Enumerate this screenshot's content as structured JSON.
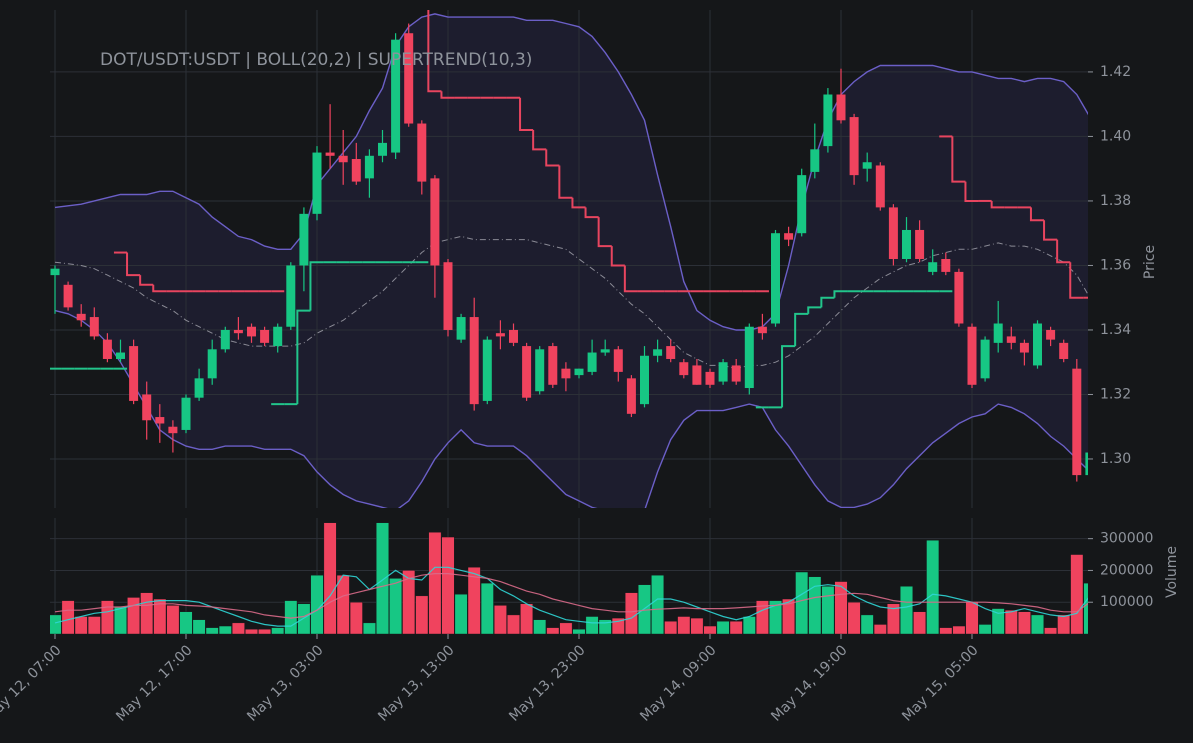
{
  "chart_data": [
    {
      "type": "candlestick",
      "title": "DOT/USDT:USDT | BOLL(20,2) | SUPERTREND(10,3)",
      "ylabel": "Price",
      "up_color": "#17c784",
      "down_color": "#f0435e",
      "open": [
        1.357,
        1.354,
        1.345,
        1.344,
        1.337,
        1.331,
        1.335,
        1.32,
        1.313,
        1.31,
        1.309,
        1.319,
        1.325,
        1.334,
        1.34,
        1.341,
        1.34,
        1.335,
        1.341,
        1.36,
        1.376,
        1.395,
        1.394,
        1.393,
        1.387,
        1.394,
        1.395,
        1.432,
        1.404,
        1.387,
        1.361,
        1.337,
        1.344,
        1.318,
        1.339,
        1.34,
        1.335,
        1.321,
        1.335,
        1.328,
        1.326,
        1.327,
        1.333,
        1.334,
        1.325,
        1.317,
        1.332,
        1.335,
        1.33,
        1.329,
        1.327,
        1.324,
        1.329,
        1.322,
        1.341,
        1.342,
        1.37,
        1.37,
        1.389,
        1.397,
        1.413,
        1.406,
        1.39,
        1.391,
        1.378,
        1.362,
        1.371,
        1.358,
        1.362,
        1.358,
        1.341,
        1.325,
        1.336,
        1.338,
        1.336,
        1.329,
        1.34,
        1.336,
        1.328,
        1.295
      ],
      "high": [
        1.36,
        1.355,
        1.348,
        1.347,
        1.339,
        1.337,
        1.337,
        1.324,
        1.317,
        1.312,
        1.32,
        1.328,
        1.337,
        1.341,
        1.344,
        1.342,
        1.341,
        1.342,
        1.361,
        1.378,
        1.397,
        1.41,
        1.402,
        1.398,
        1.396,
        1.402,
        1.432,
        1.435,
        1.405,
        1.388,
        1.362,
        1.345,
        1.35,
        1.338,
        1.343,
        1.342,
        1.336,
        1.335,
        1.336,
        1.33,
        1.328,
        1.337,
        1.337,
        1.335,
        1.326,
        1.335,
        1.337,
        1.337,
        1.331,
        1.331,
        1.328,
        1.331,
        1.331,
        1.342,
        1.345,
        1.371,
        1.372,
        1.39,
        1.404,
        1.415,
        1.421,
        1.407,
        1.395,
        1.392,
        1.379,
        1.375,
        1.374,
        1.365,
        1.364,
        1.359,
        1.342,
        1.338,
        1.349,
        1.341,
        1.337,
        1.343,
        1.341,
        1.337,
        1.331,
        1.31
      ],
      "low": [
        1.345,
        1.346,
        1.341,
        1.337,
        1.33,
        1.33,
        1.317,
        1.306,
        1.305,
        1.302,
        1.308,
        1.318,
        1.323,
        1.333,
        1.337,
        1.336,
        1.335,
        1.333,
        1.34,
        1.352,
        1.374,
        1.39,
        1.385,
        1.385,
        1.381,
        1.392,
        1.393,
        1.403,
        1.382,
        1.35,
        1.338,
        1.336,
        1.315,
        1.317,
        1.334,
        1.335,
        1.318,
        1.32,
        1.322,
        1.321,
        1.325,
        1.326,
        1.332,
        1.324,
        1.313,
        1.316,
        1.33,
        1.33,
        1.325,
        1.323,
        1.322,
        1.323,
        1.323,
        1.32,
        1.337,
        1.341,
        1.366,
        1.369,
        1.387,
        1.395,
        1.404,
        1.385,
        1.386,
        1.377,
        1.36,
        1.361,
        1.361,
        1.357,
        1.357,
        1.341,
        1.322,
        1.324,
        1.333,
        1.334,
        1.329,
        1.328,
        1.335,
        1.33,
        1.293,
        1.288
      ],
      "close": [
        1.359,
        1.347,
        1.343,
        1.338,
        1.331,
        1.333,
        1.318,
        1.312,
        1.311,
        1.308,
        1.319,
        1.325,
        1.334,
        1.34,
        1.339,
        1.338,
        1.336,
        1.341,
        1.36,
        1.376,
        1.395,
        1.394,
        1.392,
        1.386,
        1.394,
        1.398,
        1.43,
        1.404,
        1.386,
        1.36,
        1.34,
        1.344,
        1.317,
        1.337,
        1.338,
        1.336,
        1.319,
        1.334,
        1.323,
        1.325,
        1.328,
        1.333,
        1.334,
        1.327,
        1.314,
        1.332,
        1.334,
        1.331,
        1.326,
        1.323,
        1.323,
        1.33,
        1.324,
        1.341,
        1.339,
        1.37,
        1.368,
        1.388,
        1.396,
        1.413,
        1.405,
        1.388,
        1.392,
        1.378,
        1.362,
        1.371,
        1.362,
        1.361,
        1.358,
        1.342,
        1.323,
        1.337,
        1.342,
        1.336,
        1.333,
        1.342,
        1.337,
        1.331,
        1.295,
        1.302
      ],
      "band": {
        "color": "#6b5fc7",
        "fill": "#1f1f33",
        "upper": [
          1.378,
          1.3785,
          1.379,
          1.38,
          1.381,
          1.382,
          1.382,
          1.382,
          1.383,
          1.383,
          1.381,
          1.379,
          1.375,
          1.372,
          1.369,
          1.368,
          1.366,
          1.365,
          1.365,
          1.37,
          1.385,
          1.39,
          1.395,
          1.4,
          1.408,
          1.415,
          1.428,
          1.434,
          1.437,
          1.438,
          1.437,
          1.437,
          1.437,
          1.437,
          1.437,
          1.437,
          1.436,
          1.436,
          1.436,
          1.435,
          1.434,
          1.431,
          1.426,
          1.42,
          1.413,
          1.405,
          1.388,
          1.372,
          1.355,
          1.346,
          1.343,
          1.341,
          1.34,
          1.34,
          1.341,
          1.345,
          1.36,
          1.378,
          1.393,
          1.405,
          1.413,
          1.417,
          1.42,
          1.422,
          1.422,
          1.422,
          1.422,
          1.422,
          1.421,
          1.42,
          1.42,
          1.419,
          1.418,
          1.418,
          1.417,
          1.418,
          1.418,
          1.417,
          1.413,
          1.406
        ],
        "lower": [
          1.346,
          1.345,
          1.343,
          1.34,
          1.336,
          1.33,
          1.323,
          1.316,
          1.309,
          1.306,
          1.304,
          1.303,
          1.303,
          1.304,
          1.304,
          1.304,
          1.303,
          1.303,
          1.303,
          1.301,
          1.296,
          1.292,
          1.289,
          1.287,
          1.286,
          1.285,
          1.284,
          1.287,
          1.293,
          1.3,
          1.305,
          1.309,
          1.305,
          1.304,
          1.304,
          1.304,
          1.301,
          1.297,
          1.293,
          1.289,
          1.287,
          1.285,
          1.284,
          1.283,
          1.283,
          1.284,
          1.296,
          1.306,
          1.312,
          1.315,
          1.315,
          1.315,
          1.316,
          1.317,
          1.316,
          1.309,
          1.304,
          1.298,
          1.292,
          1.287,
          1.285,
          1.285,
          1.286,
          1.288,
          1.292,
          1.297,
          1.301,
          1.305,
          1.308,
          1.311,
          1.313,
          1.314,
          1.317,
          1.316,
          1.314,
          1.311,
          1.307,
          1.304,
          1.3,
          1.296
        ],
        "mid_color": "#8a8a95",
        "mid": [
          1.361,
          1.3605,
          1.36,
          1.359,
          1.357,
          1.355,
          1.353,
          1.35,
          1.348,
          1.346,
          1.343,
          1.341,
          1.339,
          1.337,
          1.336,
          1.335,
          1.335,
          1.335,
          1.335,
          1.336,
          1.339,
          1.341,
          1.343,
          1.346,
          1.349,
          1.352,
          1.356,
          1.36,
          1.364,
          1.367,
          1.368,
          1.369,
          1.368,
          1.368,
          1.368,
          1.368,
          1.368,
          1.367,
          1.366,
          1.365,
          1.362,
          1.359,
          1.356,
          1.352,
          1.348,
          1.345,
          1.341,
          1.337,
          1.333,
          1.331,
          1.329,
          1.329,
          1.328,
          1.329,
          1.329,
          1.33,
          1.332,
          1.335,
          1.338,
          1.342,
          1.346,
          1.35,
          1.353,
          1.356,
          1.358,
          1.36,
          1.361,
          1.363,
          1.364,
          1.365,
          1.365,
          1.366,
          1.367,
          1.366,
          1.366,
          1.365,
          1.363,
          1.361,
          1.357,
          1.35
        ]
      },
      "supertrend": [
        {
          "color": "#22c58b",
          "values": [
            1.328,
            1.328,
            1.328,
            1.328,
            1.328,
            1.328,
            null,
            null,
            null,
            null,
            null,
            null,
            null,
            null,
            null,
            null,
            null,
            1.317,
            1.317,
            1.346,
            1.361,
            1.361,
            1.361,
            1.361,
            1.361,
            1.361,
            1.361,
            1.361,
            1.361,
            null,
            null,
            null,
            null,
            null,
            null,
            null,
            null,
            null,
            null,
            null,
            null,
            null,
            null,
            null,
            null,
            null,
            null,
            null,
            null,
            null,
            null,
            null,
            null,
            null,
            1.316,
            1.316,
            1.335,
            1.345,
            1.347,
            1.35,
            1.352,
            1.352,
            1.352,
            1.352,
            1.352,
            1.352,
            1.352,
            1.352,
            1.352,
            null,
            null,
            null,
            null,
            null,
            null,
            null,
            null,
            null,
            null,
            null
          ]
        },
        {
          "color": "#e8455f",
          "values": [
            null,
            null,
            null,
            null,
            null,
            1.364,
            1.357,
            1.354,
            1.352,
            1.352,
            1.352,
            1.352,
            1.352,
            1.352,
            1.352,
            1.352,
            1.352,
            1.352,
            null,
            null,
            null,
            null,
            null,
            null,
            null,
            null,
            null,
            null,
            1.445,
            1.414,
            1.412,
            1.412,
            1.412,
            1.412,
            1.412,
            1.412,
            1.402,
            1.396,
            1.391,
            1.381,
            1.378,
            1.375,
            1.366,
            1.36,
            1.352,
            1.352,
            1.352,
            1.352,
            1.352,
            1.352,
            1.352,
            1.352,
            1.352,
            1.352,
            1.352,
            null,
            null,
            null,
            null,
            null,
            null,
            null,
            null,
            null,
            null,
            null,
            null,
            null,
            1.4,
            1.386,
            1.38,
            1.38,
            1.378,
            1.378,
            1.378,
            1.374,
            1.368,
            1.361,
            1.35,
            1.35
          ]
        }
      ],
      "ylim": [
        1.2848,
        1.4392
      ],
      "yticks": [
        {
          "value": 1.3,
          "label": "1.30"
        },
        1.32,
        1.34,
        1.36,
        1.38,
        {
          "value": 1.4,
          "label": "1.40"
        },
        1.42
      ]
    },
    {
      "type": "volume",
      "ylabel": "Volume",
      "x": [
        "May 12, 07:00",
        "May 12, 08:00",
        "May 12, 09:00",
        "May 12, 10:00",
        "May 12, 11:00",
        "May 12, 12:00",
        "May 12, 13:00",
        "May 12, 14:00",
        "May 12, 15:00",
        "May 12, 16:00",
        "May 12, 17:00",
        "May 12, 18:00",
        "May 12, 19:00",
        "May 12, 20:00",
        "May 12, 21:00",
        "May 12, 22:00",
        "May 12, 23:00",
        "May 13, 00:00",
        "May 13, 01:00",
        "May 13, 02:00",
        "May 13, 03:00",
        "May 13, 04:00",
        "May 13, 05:00",
        "May 13, 06:00",
        "May 13, 07:00",
        "May 13, 08:00",
        "May 13, 09:00",
        "May 13, 10:00",
        "May 13, 11:00",
        "May 13, 12:00",
        "May 13, 13:00",
        "May 13, 14:00",
        "May 13, 15:00",
        "May 13, 16:00",
        "May 13, 17:00",
        "May 13, 18:00",
        "May 13, 19:00",
        "May 13, 20:00",
        "May 13, 21:00",
        "May 13, 22:00",
        "May 13, 23:00",
        "May 14, 00:00",
        "May 14, 01:00",
        "May 14, 02:00",
        "May 14, 03:00",
        "May 14, 04:00",
        "May 14, 05:00",
        "May 14, 06:00",
        "May 14, 07:00",
        "May 14, 08:00",
        "May 14, 09:00",
        "May 14, 10:00",
        "May 14, 11:00",
        "May 14, 12:00",
        "May 14, 13:00",
        "May 14, 14:00",
        "May 14, 15:00",
        "May 14, 16:00",
        "May 14, 17:00",
        "May 14, 18:00",
        "May 14, 19:00",
        "May 14, 20:00",
        "May 14, 21:00",
        "May 14, 22:00",
        "May 14, 23:00",
        "May 15, 00:00",
        "May 15, 01:00",
        "May 15, 02:00",
        "May 15, 03:00",
        "May 15, 04:00",
        "May 15, 05:00",
        "May 15, 06:00",
        "May 15, 07:00",
        "May 15, 08:00",
        "May 15, 09:00",
        "May 15, 10:00",
        "May 15, 11:00",
        "May 15, 12:00",
        "May 15, 13:00",
        "May 15, 14:00"
      ],
      "xticks": [
        "May 12, 07:00",
        "May 12, 17:00",
        "May 13, 03:00",
        "May 13, 13:00",
        "May 13, 23:00",
        "May 14, 09:00",
        "May 14, 19:00",
        "May 15, 05:00"
      ],
      "values": [
        60000,
        105000,
        55000,
        55000,
        105000,
        85000,
        115000,
        130000,
        110000,
        90000,
        70000,
        45000,
        20000,
        25000,
        35000,
        15000,
        15000,
        20000,
        105000,
        95000,
        185000,
        350000,
        185000,
        100000,
        35000,
        350000,
        175000,
        200000,
        120000,
        320000,
        305000,
        125000,
        210000,
        160000,
        90000,
        60000,
        95000,
        45000,
        20000,
        35000,
        15000,
        55000,
        45000,
        50000,
        130000,
        155000,
        185000,
        40000,
        55000,
        50000,
        25000,
        40000,
        40000,
        55000,
        105000,
        105000,
        110000,
        195000,
        180000,
        150000,
        165000,
        100000,
        60000,
        30000,
        95000,
        150000,
        70000,
        295000,
        20000,
        25000,
        100000,
        30000,
        80000,
        75000,
        70000,
        60000,
        20000,
        60000,
        250000,
        160000
      ],
      "lines": [
        {
          "color": "#2fd6d6",
          "values": [
            35000,
            45000,
            55000,
            65000,
            70000,
            80000,
            90000,
            100000,
            105000,
            105000,
            105000,
            100000,
            85000,
            70000,
            55000,
            40000,
            30000,
            25000,
            25000,
            50000,
            75000,
            120000,
            185000,
            180000,
            140000,
            170000,
            200000,
            175000,
            170000,
            210000,
            210000,
            200000,
            190000,
            175000,
            140000,
            120000,
            95000,
            75000,
            60000,
            45000,
            40000,
            35000,
            35000,
            40000,
            50000,
            80000,
            110000,
            110000,
            100000,
            85000,
            70000,
            55000,
            45000,
            55000,
            75000,
            90000,
            100000,
            125000,
            150000,
            155000,
            150000,
            120000,
            100000,
            85000,
            80000,
            85000,
            95000,
            125000,
            120000,
            110000,
            100000,
            80000,
            65000,
            70000,
            80000,
            70000,
            60000,
            55000,
            65000,
            120000
          ]
        },
        {
          "color": "#d96a8a",
          "values": [
            70000,
            75000,
            75000,
            80000,
            85000,
            85000,
            90000,
            90000,
            95000,
            95000,
            90000,
            88000,
            85000,
            80000,
            75000,
            70000,
            60000,
            55000,
            50000,
            55000,
            75000,
            100000,
            120000,
            130000,
            140000,
            150000,
            160000,
            175000,
            185000,
            190000,
            190000,
            185000,
            180000,
            175000,
            165000,
            150000,
            135000,
            125000,
            110000,
            100000,
            90000,
            80000,
            75000,
            70000,
            70000,
            75000,
            78000,
            80000,
            82000,
            80000,
            80000,
            80000,
            82000,
            85000,
            88000,
            90000,
            95000,
            105000,
            115000,
            120000,
            125000,
            128000,
            125000,
            115000,
            105000,
            100000,
            100000,
            100000,
            100000,
            100000,
            100000,
            100000,
            98000,
            95000,
            90000,
            85000,
            75000,
            70000,
            70000,
            100000
          ]
        }
      ],
      "ylim": [
        0,
        365000
      ],
      "yticks": [
        100000,
        200000,
        300000
      ]
    }
  ]
}
